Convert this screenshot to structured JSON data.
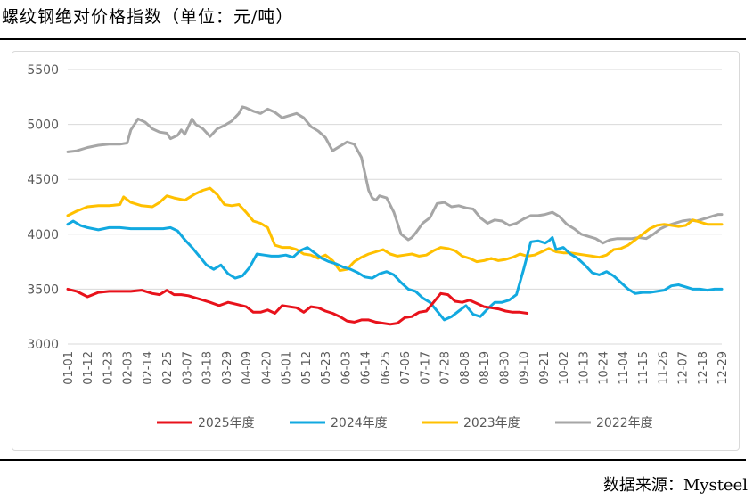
{
  "header": {
    "title": "螺纹钢绝对价格指数（单位：元/吨）"
  },
  "footer": {
    "source": "数据来源：Mysteel"
  },
  "chart_data": {
    "type": "line",
    "title": "螺纹钢绝对价格指数（单位：元/吨）",
    "ylim": [
      3000,
      5500
    ],
    "yticks": [
      3000,
      3500,
      4000,
      4500,
      5000,
      5500
    ],
    "xticks": [
      "01-01",
      "01-12",
      "01-23",
      "02-03",
      "02-14",
      "02-25",
      "03-07",
      "03-18",
      "03-29",
      "04-09",
      "04-20",
      "05-01",
      "05-12",
      "05-23",
      "06-03",
      "06-14",
      "06-25",
      "07-06",
      "07-17",
      "07-28",
      "08-08",
      "08-19",
      "08-30",
      "09-10",
      "09-21",
      "10-02",
      "10-13",
      "10-24",
      "11-04",
      "11-15",
      "11-26",
      "12-07",
      "12-18",
      "12-29"
    ],
    "grid": true,
    "legend_position": "bottom",
    "series": [
      {
        "name": "2025年度",
        "color": "#e8121b",
        "x": [
          1,
          6,
          12,
          18,
          24,
          30,
          36,
          42,
          48,
          52,
          56,
          60,
          64,
          68,
          72,
          76,
          80,
          85,
          90,
          95,
          100,
          104,
          108,
          112,
          116,
          120,
          124,
          128,
          132,
          136,
          140,
          144,
          148,
          152,
          156,
          160,
          164,
          168,
          172,
          176,
          180,
          184,
          188,
          192,
          196,
          200,
          204,
          208,
          212,
          216,
          220,
          224,
          228,
          232,
          236,
          240,
          244,
          248,
          252,
          256
        ],
        "values": [
          3500,
          3480,
          3430,
          3470,
          3480,
          3480,
          3480,
          3490,
          3460,
          3450,
          3490,
          3450,
          3450,
          3440,
          3420,
          3400,
          3380,
          3350,
          3380,
          3360,
          3340,
          3290,
          3290,
          3310,
          3280,
          3350,
          3340,
          3330,
          3290,
          3340,
          3330,
          3300,
          3280,
          3250,
          3210,
          3200,
          3220,
          3220,
          3200,
          3190,
          3180,
          3190,
          3240,
          3250,
          3290,
          3300,
          3380,
          3460,
          3450,
          3390,
          3380,
          3400,
          3370,
          3340,
          3330,
          3320,
          3300,
          3290,
          3290,
          3280
        ]
      },
      {
        "name": "2024年度",
        "color": "#12a9e0",
        "x": [
          1,
          4,
          8,
          12,
          18,
          24,
          30,
          36,
          42,
          48,
          54,
          58,
          62,
          66,
          70,
          74,
          78,
          82,
          86,
          90,
          94,
          98,
          102,
          106,
          110,
          114,
          118,
          122,
          126,
          130,
          134,
          138,
          142,
          146,
          150,
          154,
          158,
          162,
          166,
          170,
          174,
          178,
          182,
          186,
          190,
          194,
          198,
          202,
          206,
          210,
          214,
          218,
          222,
          226,
          230,
          234,
          238,
          242,
          246,
          250,
          254,
          258,
          262,
          266,
          268,
          270,
          272,
          276,
          280,
          284,
          288,
          292,
          296,
          300,
          304,
          308,
          312,
          316,
          320,
          324,
          328,
          332,
          336,
          340,
          344,
          348,
          352,
          356,
          360,
          364
        ],
        "values": [
          4090,
          4120,
          4080,
          4060,
          4040,
          4060,
          4060,
          4050,
          4050,
          4050,
          4050,
          4060,
          4030,
          3950,
          3880,
          3800,
          3720,
          3680,
          3720,
          3640,
          3600,
          3620,
          3700,
          3820,
          3810,
          3800,
          3800,
          3810,
          3790,
          3850,
          3880,
          3830,
          3780,
          3750,
          3730,
          3700,
          3680,
          3650,
          3610,
          3600,
          3640,
          3660,
          3630,
          3560,
          3500,
          3480,
          3420,
          3380,
          3300,
          3220,
          3250,
          3300,
          3350,
          3270,
          3250,
          3320,
          3380,
          3380,
          3400,
          3450,
          3680,
          3930,
          3940,
          3920,
          3940,
          3970,
          3860,
          3880,
          3820,
          3780,
          3720,
          3650,
          3630,
          3660,
          3620,
          3560,
          3500,
          3460,
          3470,
          3470,
          3480,
          3490,
          3530,
          3540,
          3520,
          3500,
          3500,
          3490,
          3500,
          3500
        ]
      },
      {
        "name": "2023年度",
        "color": "#ffc000",
        "x": [
          1,
          6,
          12,
          18,
          24,
          30,
          32,
          36,
          42,
          48,
          52,
          56,
          60,
          66,
          72,
          76,
          80,
          84,
          88,
          92,
          96,
          100,
          104,
          108,
          112,
          116,
          120,
          124,
          128,
          132,
          136,
          140,
          144,
          148,
          152,
          156,
          160,
          164,
          168,
          172,
          176,
          180,
          184,
          188,
          192,
          196,
          200,
          204,
          208,
          212,
          216,
          220,
          224,
          228,
          232,
          236,
          240,
          244,
          248,
          252,
          256,
          260,
          264,
          268,
          272,
          276,
          280,
          284,
          288,
          292,
          296,
          300,
          304,
          308,
          312,
          316,
          320,
          324,
          328,
          332,
          336,
          340,
          344,
          348,
          352,
          356,
          360,
          364
        ],
        "values": [
          4170,
          4210,
          4250,
          4260,
          4260,
          4270,
          4340,
          4290,
          4260,
          4250,
          4290,
          4350,
          4330,
          4310,
          4370,
          4400,
          4420,
          4360,
          4270,
          4260,
          4270,
          4200,
          4120,
          4100,
          4060,
          3900,
          3880,
          3880,
          3860,
          3820,
          3810,
          3780,
          3810,
          3760,
          3670,
          3680,
          3750,
          3790,
          3820,
          3840,
          3860,
          3820,
          3800,
          3810,
          3820,
          3800,
          3810,
          3850,
          3880,
          3870,
          3850,
          3800,
          3780,
          3750,
          3760,
          3780,
          3760,
          3770,
          3790,
          3820,
          3800,
          3810,
          3840,
          3870,
          3840,
          3830,
          3830,
          3820,
          3810,
          3800,
          3790,
          3810,
          3860,
          3870,
          3900,
          3950,
          4000,
          4050,
          4080,
          4090,
          4080,
          4070,
          4080,
          4130,
          4110,
          4090,
          4090,
          4090
        ]
      },
      {
        "name": "2022年度",
        "color": "#a6a6a6",
        "x": [
          1,
          6,
          12,
          18,
          24,
          30,
          34,
          36,
          40,
          44,
          48,
          52,
          56,
          58,
          62,
          64,
          66,
          70,
          72,
          76,
          80,
          84,
          88,
          92,
          96,
          98,
          100,
          104,
          108,
          112,
          116,
          120,
          124,
          128,
          132,
          136,
          140,
          144,
          148,
          152,
          156,
          160,
          164,
          168,
          170,
          172,
          174,
          178,
          182,
          186,
          190,
          192,
          194,
          198,
          202,
          206,
          210,
          214,
          218,
          222,
          226,
          230,
          234,
          238,
          242,
          246,
          250,
          254,
          258,
          262,
          266,
          270,
          274,
          278,
          282,
          286,
          290,
          294,
          298,
          302,
          306,
          310,
          314,
          318,
          322,
          326,
          330,
          334,
          338,
          342,
          346,
          350,
          354,
          358,
          362,
          364
        ],
        "values": [
          4750,
          4760,
          4790,
          4810,
          4820,
          4820,
          4830,
          4950,
          5050,
          5020,
          4960,
          4930,
          4920,
          4870,
          4900,
          4950,
          4910,
          5050,
          5000,
          4960,
          4890,
          4960,
          4990,
          5030,
          5100,
          5160,
          5150,
          5120,
          5100,
          5140,
          5110,
          5060,
          5080,
          5100,
          5060,
          4980,
          4940,
          4880,
          4760,
          4800,
          4840,
          4820,
          4700,
          4400,
          4330,
          4310,
          4350,
          4330,
          4200,
          4000,
          3950,
          3970,
          4010,
          4100,
          4150,
          4280,
          4290,
          4250,
          4260,
          4240,
          4230,
          4150,
          4100,
          4130,
          4120,
          4080,
          4100,
          4140,
          4170,
          4170,
          4180,
          4200,
          4160,
          4090,
          4050,
          4000,
          3980,
          3960,
          3920,
          3950,
          3960,
          3960,
          3960,
          3970,
          3960,
          4000,
          4050,
          4080,
          4100,
          4120,
          4130,
          4120,
          4140,
          4160,
          4180,
          4180
        ]
      }
    ]
  }
}
